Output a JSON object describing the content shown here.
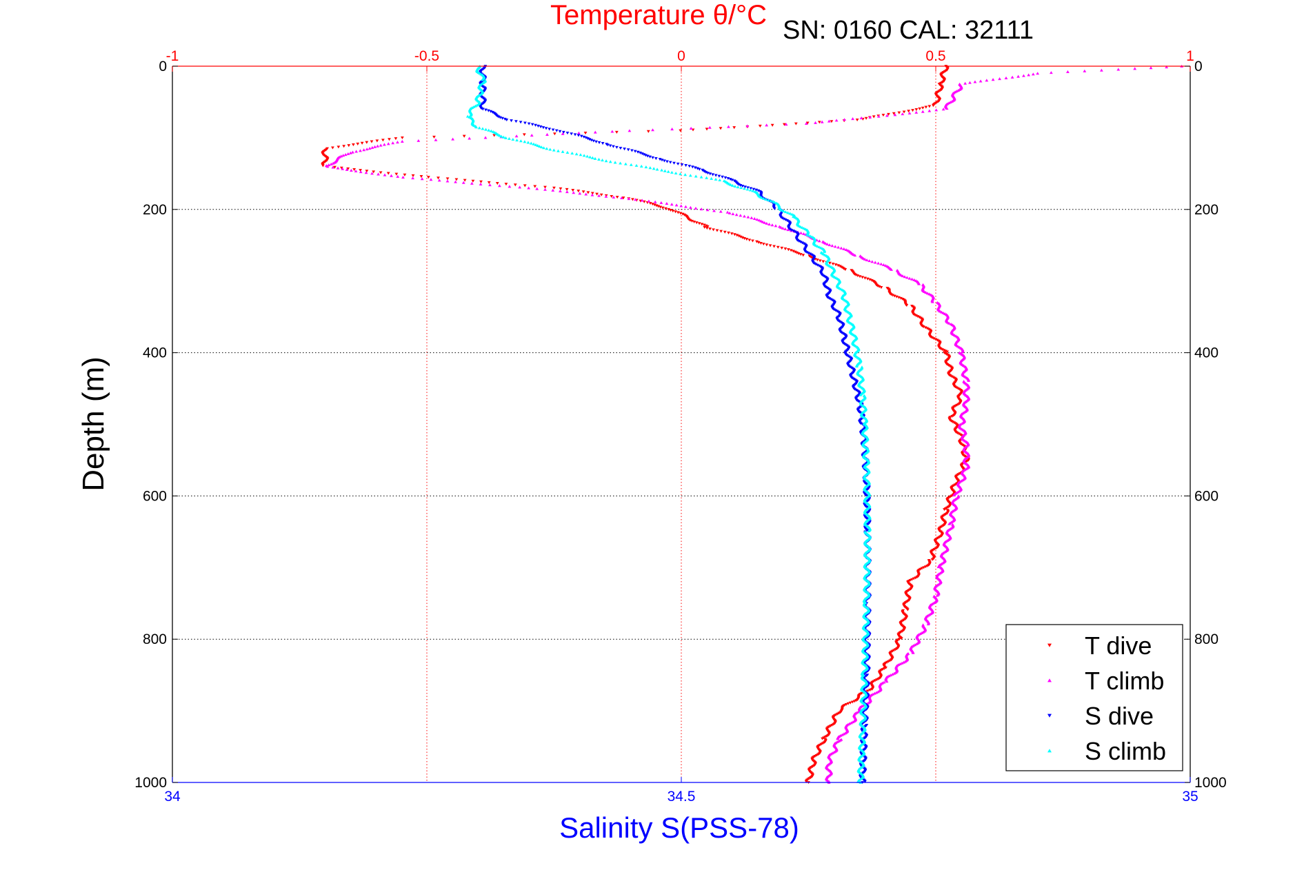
{
  "chart_data": {
    "type": "scatter",
    "title": "Temperature θ/°C",
    "subtitle": "SN: 0160  CAL: 32111",
    "xlabel_bottom": "Salinity S(PSS-78)",
    "xlabel_top": "Temperature θ/°C",
    "ylabel": "Depth (m)",
    "salinity_axis": {
      "range": [
        34,
        35
      ],
      "ticks": [
        "34",
        "34.5",
        "35"
      ]
    },
    "temperature_axis": {
      "range": [
        -1,
        1
      ],
      "ticks": [
        "-1",
        "-0.5",
        "0",
        "0.5",
        "1"
      ]
    },
    "depth_axis": {
      "range": [
        0,
        1000
      ],
      "reversed": true,
      "ticks": [
        "0",
        "200",
        "400",
        "600",
        "800",
        "1000"
      ]
    },
    "grid": true,
    "legend_position": "bottom-right",
    "series": [
      {
        "name": "T dive",
        "axis": "temperature",
        "color": "#ff0000",
        "marker": "triangle-down",
        "points": [
          [
            0.52,
            0
          ],
          [
            0.51,
            25
          ],
          [
            0.5,
            55
          ],
          [
            0.35,
            75
          ],
          [
            0.0,
            90
          ],
          [
            -0.55,
            100
          ],
          [
            -0.7,
            115
          ],
          [
            -0.7,
            140
          ],
          [
            -0.5,
            155
          ],
          [
            -0.25,
            170
          ],
          [
            -0.1,
            185
          ],
          [
            -0.02,
            200
          ],
          [
            0.05,
            225
          ],
          [
            0.15,
            245
          ],
          [
            0.25,
            265
          ],
          [
            0.33,
            285
          ],
          [
            0.4,
            310
          ],
          [
            0.45,
            335
          ],
          [
            0.48,
            365
          ],
          [
            0.52,
            400
          ],
          [
            0.53,
            430
          ],
          [
            0.55,
            460
          ],
          [
            0.53,
            490
          ],
          [
            0.55,
            520
          ],
          [
            0.56,
            550
          ],
          [
            0.54,
            580
          ],
          [
            0.52,
            620
          ],
          [
            0.51,
            650
          ],
          [
            0.49,
            690
          ],
          [
            0.45,
            720
          ],
          [
            0.44,
            760
          ],
          [
            0.43,
            800
          ],
          [
            0.4,
            840
          ],
          [
            0.37,
            870
          ],
          [
            0.31,
            900
          ],
          [
            0.28,
            940
          ],
          [
            0.26,
            970
          ],
          [
            0.25,
            1000
          ]
        ]
      },
      {
        "name": "T climb",
        "axis": "temperature",
        "color": "#ff00ff",
        "marker": "triangle-up",
        "points": [
          [
            0.98,
            0
          ],
          [
            0.7,
            10
          ],
          [
            0.55,
            25
          ],
          [
            0.52,
            60
          ],
          [
            0.25,
            80
          ],
          [
            -0.1,
            90
          ],
          [
            -0.55,
            105
          ],
          [
            -0.65,
            120
          ],
          [
            -0.7,
            140
          ],
          [
            -0.55,
            155
          ],
          [
            -0.3,
            170
          ],
          [
            -0.1,
            185
          ],
          [
            0.1,
            205
          ],
          [
            0.2,
            225
          ],
          [
            0.28,
            245
          ],
          [
            0.35,
            265
          ],
          [
            0.42,
            285
          ],
          [
            0.47,
            305
          ],
          [
            0.5,
            330
          ],
          [
            0.53,
            360
          ],
          [
            0.55,
            400
          ],
          [
            0.56,
            440
          ],
          [
            0.56,
            470
          ],
          [
            0.55,
            500
          ],
          [
            0.56,
            530
          ],
          [
            0.56,
            560
          ],
          [
            0.54,
            600
          ],
          [
            0.53,
            640
          ],
          [
            0.51,
            700
          ],
          [
            0.5,
            740
          ],
          [
            0.48,
            780
          ],
          [
            0.45,
            820
          ],
          [
            0.4,
            860
          ],
          [
            0.35,
            900
          ],
          [
            0.31,
            940
          ],
          [
            0.29,
            970
          ],
          [
            0.29,
            1000
          ]
        ]
      },
      {
        "name": "S dive",
        "axis": "salinity",
        "color": "#0000ff",
        "marker": "triangle-down",
        "points": [
          [
            34.305,
            0
          ],
          [
            34.305,
            30
          ],
          [
            34.305,
            60
          ],
          [
            34.33,
            75
          ],
          [
            34.38,
            90
          ],
          [
            34.43,
            110
          ],
          [
            34.48,
            130
          ],
          [
            34.52,
            145
          ],
          [
            34.55,
            160
          ],
          [
            34.575,
            175
          ],
          [
            34.595,
            200
          ],
          [
            34.61,
            230
          ],
          [
            34.625,
            260
          ],
          [
            34.64,
            290
          ],
          [
            34.645,
            320
          ],
          [
            34.655,
            350
          ],
          [
            34.66,
            380
          ],
          [
            34.665,
            410
          ],
          [
            34.67,
            440
          ],
          [
            34.675,
            470
          ],
          [
            34.678,
            500
          ],
          [
            34.68,
            530
          ],
          [
            34.682,
            580
          ],
          [
            34.683,
            650
          ],
          [
            34.683,
            750
          ],
          [
            34.682,
            850
          ],
          [
            34.68,
            920
          ],
          [
            34.678,
            1000
          ]
        ]
      },
      {
        "name": "S climb",
        "axis": "salinity",
        "color": "#00ffff",
        "marker": "triangle-up",
        "points": [
          [
            34.3,
            0
          ],
          [
            34.305,
            20
          ],
          [
            34.3,
            50
          ],
          [
            34.29,
            70
          ],
          [
            34.3,
            85
          ],
          [
            34.33,
            100
          ],
          [
            34.37,
            115
          ],
          [
            34.42,
            130
          ],
          [
            34.48,
            145
          ],
          [
            34.54,
            160
          ],
          [
            34.57,
            175
          ],
          [
            34.59,
            190
          ],
          [
            34.61,
            210
          ],
          [
            34.625,
            235
          ],
          [
            34.64,
            260
          ],
          [
            34.65,
            290
          ],
          [
            34.66,
            320
          ],
          [
            34.665,
            350
          ],
          [
            34.67,
            380
          ],
          [
            34.675,
            420
          ],
          [
            34.678,
            460
          ],
          [
            34.68,
            500
          ],
          [
            34.682,
            560
          ],
          [
            34.683,
            650
          ],
          [
            34.682,
            750
          ],
          [
            34.68,
            850
          ],
          [
            34.678,
            930
          ],
          [
            34.676,
            1000
          ]
        ]
      }
    ]
  }
}
